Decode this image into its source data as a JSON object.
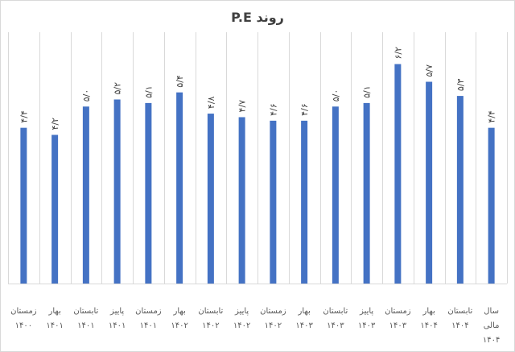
{
  "chart_data": {
    "type": "bar",
    "title": "روند P.E",
    "xlabel": "",
    "ylabel": "",
    "ylim": [
      0,
      7.1
    ],
    "grid": "vertical category separators",
    "legend": "none",
    "bar_color": "#4472C4",
    "categories": [
      [
        "زمستان",
        "۱۴۰۰"
      ],
      [
        "بهار",
        "۱۴۰۱"
      ],
      [
        "تابستان",
        "۱۴۰۱"
      ],
      [
        "پاییز",
        "۱۴۰۱"
      ],
      [
        "زمستان",
        "۱۴۰۱"
      ],
      [
        "بهار",
        "۱۴۰۲"
      ],
      [
        "تابستان",
        "۱۴۰۲"
      ],
      [
        "پاییز",
        "۱۴۰۲"
      ],
      [
        "زمستان",
        "۱۴۰۲"
      ],
      [
        "بهار",
        "۱۴۰۳"
      ],
      [
        "تابستان",
        "۱۴۰۳"
      ],
      [
        "پاییز",
        "۱۴۰۳"
      ],
      [
        "زمستان",
        "۱۴۰۳"
      ],
      [
        "بهار",
        "۱۴۰۴"
      ],
      [
        "تابستان",
        "۱۴۰۴"
      ],
      [
        "سال",
        "مالی",
        "۱۴۰۴"
      ]
    ],
    "values": [
      4.4,
      4.2,
      5.0,
      5.2,
      5.1,
      5.4,
      4.8,
      4.7,
      4.6,
      4.6,
      5.0,
      5.1,
      6.2,
      5.7,
      5.3,
      4.4
    ],
    "data_labels": [
      "۴/۴",
      "۴/۲",
      "۵/۰",
      "۵/۲",
      "۵/۱",
      "۵/۴",
      "۴/۸",
      "۴/۷",
      "۴/۶",
      "۴/۶",
      "۵/۰",
      "۵/۱",
      "۶/۲",
      "۵/۷",
      "۵/۳",
      "۴/۴"
    ]
  }
}
